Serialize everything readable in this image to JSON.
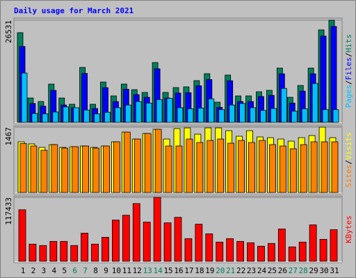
{
  "title": "Daily usage for March 2021",
  "legend_separator": "/",
  "categories": [
    1,
    2,
    3,
    4,
    5,
    6,
    7,
    8,
    9,
    10,
    11,
    12,
    13,
    14,
    15,
    16,
    17,
    18,
    19,
    20,
    21,
    22,
    23,
    24,
    25,
    26,
    27,
    28,
    29,
    30,
    31
  ],
  "category_colors": [
    "#000000",
    "#000000",
    "#000000",
    "#000000",
    "#000000",
    "#00805c",
    "#00805c",
    "#000000",
    "#000000",
    "#000000",
    "#000000",
    "#000000",
    "#00805c",
    "#00805c",
    "#000000",
    "#000000",
    "#000000",
    "#000000",
    "#000000",
    "#00805c",
    "#00805c",
    "#000000",
    "#000000",
    "#000000",
    "#000000",
    "#000000",
    "#00805c",
    "#00805c",
    "#000000",
    "#000000",
    "#000000"
  ],
  "chart_data": [
    {
      "type": "bar",
      "ylim": [
        0,
        26531
      ],
      "yticks": [
        26531
      ],
      "series": [
        {
          "name": "Hits",
          "color": "#00805c",
          "values": [
            23285,
            6318,
            5415,
            9928,
            6318,
            4693,
            14260,
            4693,
            10469,
            6859,
            9928,
            8484,
            7762,
            15523,
            7762,
            9025,
            9206,
            10830,
            12635,
            5235,
            12274,
            6859,
            6859,
            7942,
            8303,
            14079,
            6498,
            9567,
            14079,
            24007,
            26531
          ]
        },
        {
          "name": "Files",
          "color": "#0000ff",
          "values": [
            19700,
            4900,
            4200,
            8300,
            4500,
            3800,
            12700,
            3600,
            9000,
            5400,
            8600,
            7200,
            6500,
            13900,
            6300,
            7600,
            7700,
            9500,
            11100,
            3900,
            10800,
            5400,
            5400,
            6700,
            7000,
            12600,
            5000,
            8100,
            12600,
            22400,
            24900
          ]
        },
        {
          "name": "Pages",
          "color": "#00c0ff",
          "values": [
            12800,
            2300,
            2200,
            2700,
            4000,
            3800,
            3200,
            2200,
            2600,
            3800,
            4500,
            5400,
            5000,
            5900,
            6200,
            3800,
            3500,
            3700,
            6100,
            3300,
            4500,
            4900,
            3800,
            3100,
            3600,
            8800,
            2900,
            3500,
            10100,
            3300,
            3300
          ]
        }
      ]
    },
    {
      "type": "bar",
      "ylim": [
        0,
        1467
      ],
      "yticks": [
        1467
      ],
      "series": [
        {
          "name": "Visits",
          "color": "#ffff00",
          "values": [
            1139,
            1092,
            1014,
            1076,
            1014,
            1030,
            1045,
            1014,
            1045,
            1139,
            1357,
            1201,
            1326,
            1420,
            1201,
            1435,
            1451,
            1310,
            1451,
            1451,
            1388,
            1264,
            1388,
            1248,
            1232,
            1201,
            1154,
            1232,
            1279,
            1467,
            1232
          ]
        },
        {
          "name": "Sites",
          "color": "#ff8000",
          "values": [
            1100,
            1045,
            950,
            1076,
            998,
            1030,
            1045,
            998,
            1045,
            1139,
            1357,
            1201,
            1326,
            1420,
            1045,
            1045,
            1201,
            1123,
            1170,
            1201,
            1108,
            1170,
            1123,
            1170,
            1076,
            1045,
            983,
            1076,
            1139,
            1139,
            1139
          ]
        }
      ]
    },
    {
      "type": "bar",
      "ylim": [
        0,
        117433
      ],
      "yticks": [
        117433
      ],
      "series": [
        {
          "name": "KBytes",
          "color": "#ff0000",
          "values": [
            94725,
            31575,
            29049,
            36627,
            36627,
            29049,
            51783,
            31575,
            44205,
            75780,
            84621,
            106092,
            71991,
            117433,
            70728,
            80832,
            41679,
            68202,
            50520,
            35364,
            41679,
            36627,
            34101,
            27786,
            32838,
            59361,
            26523,
            35364,
            66939,
            40416,
            58098
          ]
        }
      ]
    }
  ]
}
